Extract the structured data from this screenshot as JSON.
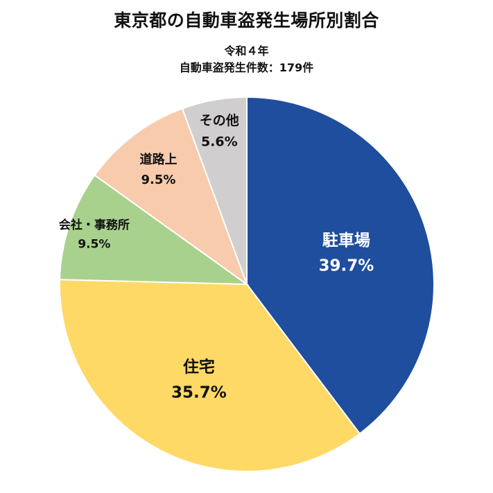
{
  "chart_data": {
    "type": "pie",
    "title": "東京都の自動車盗発生場所別割合",
    "subtitle_lines": [
      "令和４年",
      "自動車盗発生件数：179件"
    ],
    "slices": [
      {
        "label": "駐車場",
        "value": 39.7,
        "display": "39.7%",
        "color": "#1f4e9e"
      },
      {
        "label": "住宅",
        "value": 35.7,
        "display": "35.7%",
        "color": "#ffd966"
      },
      {
        "label": "会社・事務所",
        "value": 9.5,
        "display": "9.5%",
        "color": "#a9d18e"
      },
      {
        "label": "道路上",
        "value": 9.5,
        "display": "9.5%",
        "color": "#f8cbad"
      },
      {
        "label": "その他",
        "value": 5.6,
        "display": "5.6%",
        "color": "#d0cece"
      }
    ],
    "start": "12 o'clock",
    "direction": "clockwise",
    "legend": "none"
  }
}
